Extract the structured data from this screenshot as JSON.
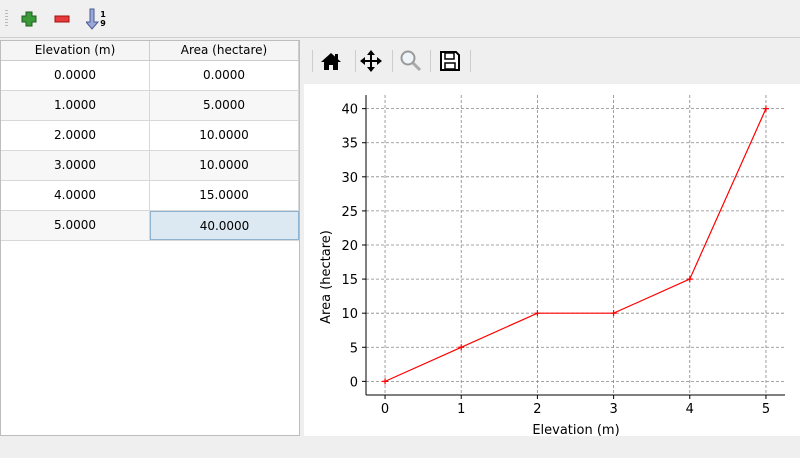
{
  "toolbar": {
    "buttons": [
      {
        "icon": "add-icon",
        "color": "#3a9a3a"
      },
      {
        "icon": "remove-icon",
        "color": "#e03030"
      },
      {
        "icon": "sort-icon"
      }
    ],
    "sort_top": "1",
    "sort_bottom": "9"
  },
  "table": {
    "columns": [
      "Elevation (m)",
      "Area (hectare)"
    ],
    "rows": [
      [
        "0.0000",
        "0.0000"
      ],
      [
        "1.0000",
        "5.0000"
      ],
      [
        "2.0000",
        "10.0000"
      ],
      [
        "3.0000",
        "10.0000"
      ],
      [
        "4.0000",
        "15.0000"
      ],
      [
        "5.0000",
        "40.0000"
      ]
    ],
    "selected_cell": [
      5,
      1
    ]
  },
  "plot_toolbar": [
    "home-icon",
    "pan-icon",
    "zoom-icon",
    "save-icon"
  ],
  "chart_data": {
    "type": "line",
    "x": [
      0,
      1,
      2,
      3,
      4,
      5
    ],
    "y": [
      0,
      5,
      10,
      10,
      15,
      40
    ],
    "xlabel": "Elevation (m)",
    "ylabel": "Area (hectare)",
    "xlim": [
      -0.25,
      5.25
    ],
    "ylim": [
      -2,
      42
    ],
    "xticks": [
      0,
      1,
      2,
      3,
      4,
      5
    ],
    "yticks": [
      0,
      5,
      10,
      15,
      20,
      25,
      30,
      35,
      40
    ],
    "grid": true,
    "color": "#ff0000",
    "marker": "+"
  }
}
